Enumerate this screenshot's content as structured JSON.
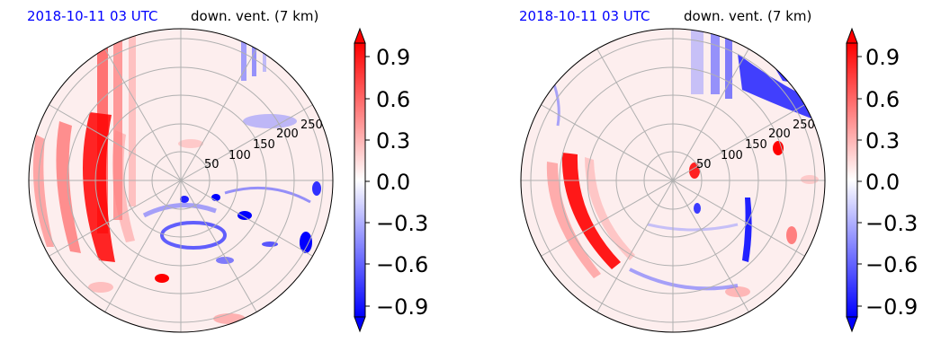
{
  "panels": [
    {
      "title_left": "2018-10-11 03 UTC",
      "title_right": "down. vent. (7 km)",
      "radial_ticks": [
        "50",
        "100",
        "150",
        "200",
        "250"
      ],
      "colorbar_ticks": [
        "0.9",
        "0.6",
        "0.3",
        "0.0",
        "−0.3",
        "−0.6",
        "−0.9"
      ]
    },
    {
      "title_left": "2018-10-11 03 UTC",
      "title_right": "down. vent. (7 km)",
      "radial_ticks": [
        "50",
        "100",
        "150",
        "200",
        "250"
      ],
      "colorbar_ticks": [
        "0.9",
        "0.6",
        "0.3",
        "0.0",
        "−0.3",
        "−0.6",
        "−0.9"
      ]
    }
  ],
  "chart_data": [
    {
      "type": "heatmap",
      "projection": "polar",
      "title": "2018-10-11 03 UTC   down. vent. (7 km)",
      "r_ticks": [
        50,
        100,
        150,
        200,
        250
      ],
      "r_max": 270,
      "grid": true,
      "colormap": "bwr",
      "clim": [
        -1.0,
        1.0
      ],
      "colorbar_ticks": [
        0.9,
        0.6,
        0.3,
        0.0,
        -0.3,
        -0.6,
        -0.9
      ],
      "colorbar_extend": "both",
      "colors": {
        "positive": "#ff0000",
        "negative": "#0000ff",
        "neutral": "#ffffff"
      }
    },
    {
      "type": "heatmap",
      "projection": "polar",
      "title": "2018-10-11 03 UTC   down. vent. (7 km)",
      "r_ticks": [
        50,
        100,
        150,
        200,
        250
      ],
      "r_max": 270,
      "grid": true,
      "colormap": "bwr",
      "clim": [
        -1.0,
        1.0
      ],
      "colorbar_ticks": [
        0.9,
        0.6,
        0.3,
        0.0,
        -0.3,
        -0.6,
        -0.9
      ],
      "colorbar_extend": "both",
      "colors": {
        "positive": "#ff0000",
        "negative": "#0000ff",
        "neutral": "#ffffff"
      }
    }
  ]
}
